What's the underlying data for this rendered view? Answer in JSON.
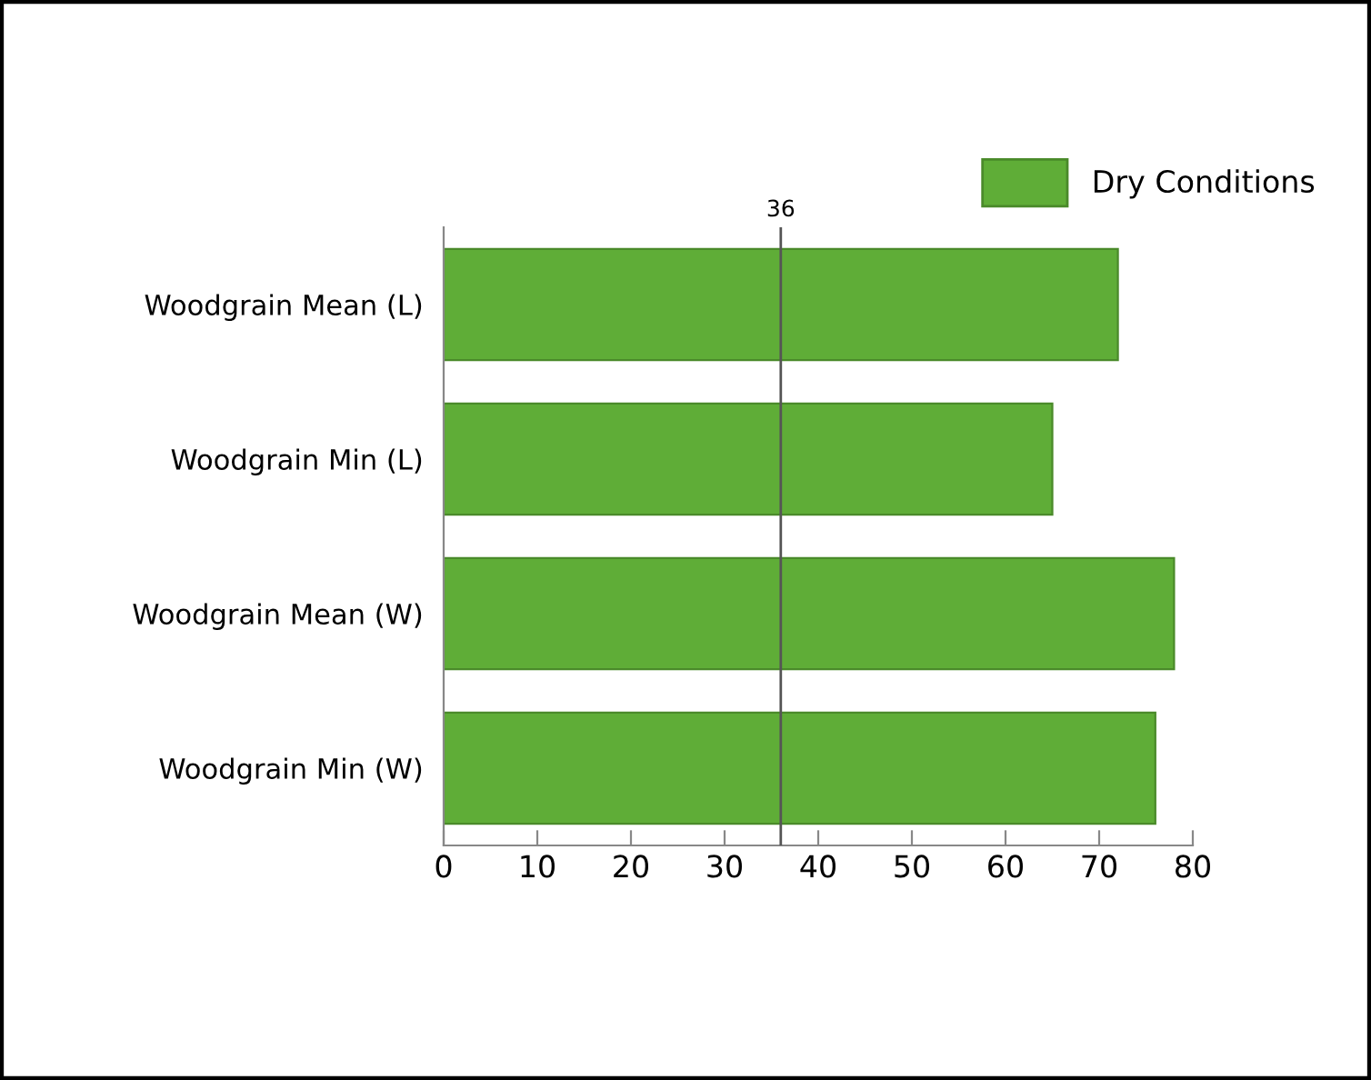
{
  "chart_data": {
    "type": "bar",
    "orientation": "horizontal",
    "categories": [
      "Woodgrain Mean (L)",
      "Woodgrain Min (L)",
      "Woodgrain Mean (W)",
      "Woodgrain Min (W)"
    ],
    "series": [
      {
        "name": "Dry Conditions",
        "color": "#5fad37",
        "values": [
          72,
          65,
          78,
          76
        ]
      }
    ],
    "xlim": [
      0,
      80
    ],
    "xticks": [
      0,
      10,
      20,
      30,
      40,
      50,
      60,
      70,
      80
    ],
    "ref_lines": [
      {
        "axis": "x",
        "value": 36,
        "label": "36"
      }
    ],
    "grid": false,
    "legend": "top right"
  }
}
